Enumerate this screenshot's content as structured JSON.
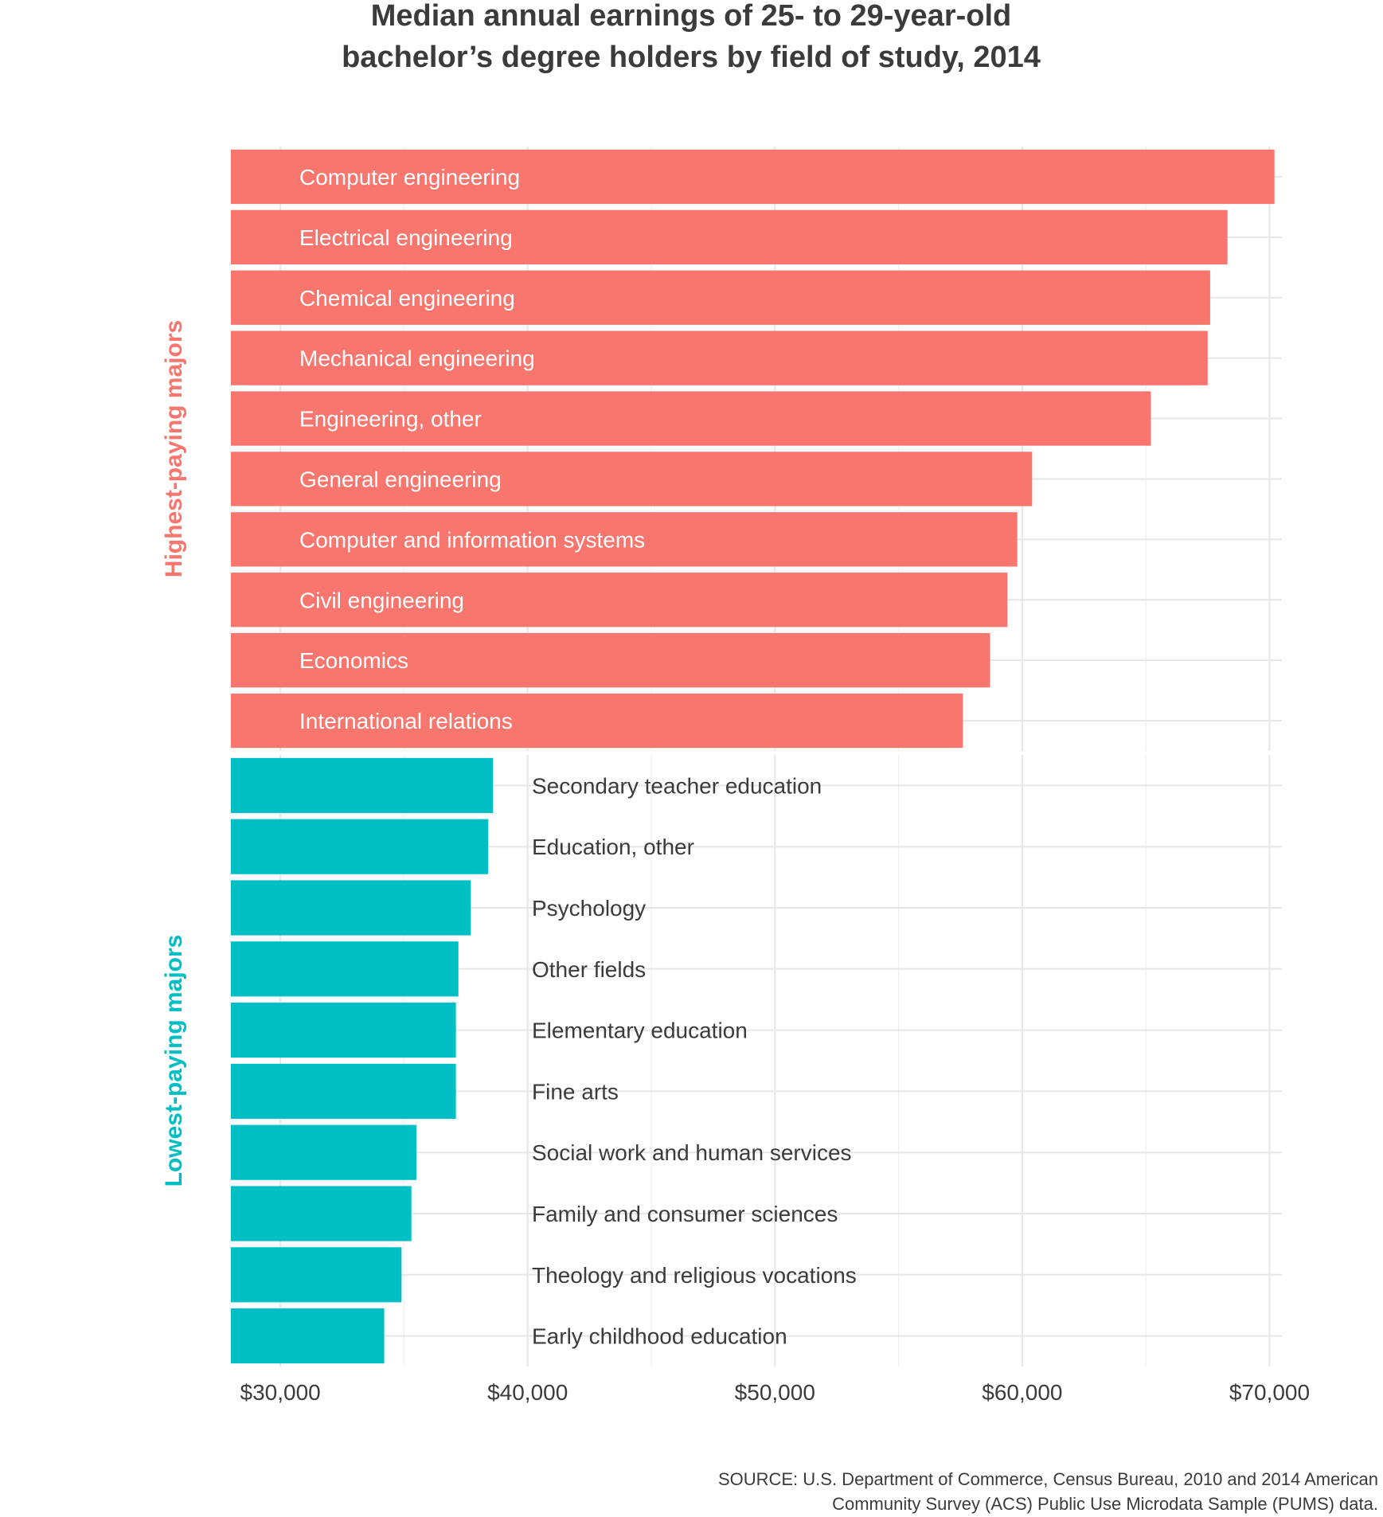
{
  "chart_data": {
    "type": "bar",
    "orientation": "horizontal",
    "title": "Median annual earnings of 25- to 29-year-old bachelor’s degree holders by field of study, 2014",
    "title_lines": [
      "Median annual earnings of 25- to 29-year-old",
      "bachelor’s degree holders by field of study, 2014"
    ],
    "xlabel": "",
    "ylabel": "",
    "xlim": [
      28000,
      70500
    ],
    "x_ticks": [
      30000,
      40000,
      50000,
      60000,
      70000
    ],
    "x_tick_labels": [
      "$30,000",
      "$40,000",
      "$50,000",
      "$60,000",
      "$70,000"
    ],
    "grid": true,
    "panels": [
      {
        "name": "Highest-paying majors",
        "color": "#F8766D",
        "categories": [
          "Computer engineering",
          "Electrical engineering",
          "Chemical engineering",
          "Mechanical engineering",
          "Engineering, other",
          "General engineering",
          "Computer and information systems",
          "Civil engineering",
          "Economics",
          "International relations"
        ],
        "values": [
          70200,
          68300,
          67600,
          67500,
          65200,
          60400,
          59800,
          59400,
          58700,
          57600
        ]
      },
      {
        "name": "Lowest-paying majors",
        "color": "#00BFC4",
        "categories": [
          "Secondary teacher education",
          "Education, other",
          "Psychology",
          "Other fields",
          "Elementary education",
          "Fine arts",
          "Social work and human services",
          "Family and consumer sciences",
          "Theology and religious vocations",
          "Early childhood education"
        ],
        "values": [
          38600,
          38400,
          37700,
          37200,
          37100,
          37100,
          35500,
          35300,
          34900,
          34200
        ]
      }
    ],
    "source_lines": [
      "SOURCE: U.S. Department of Commerce, Census Bureau, 2010 and 2014 American",
      "Community Survey (ACS) Public Use Microdata Sample (PUMS) data."
    ]
  }
}
